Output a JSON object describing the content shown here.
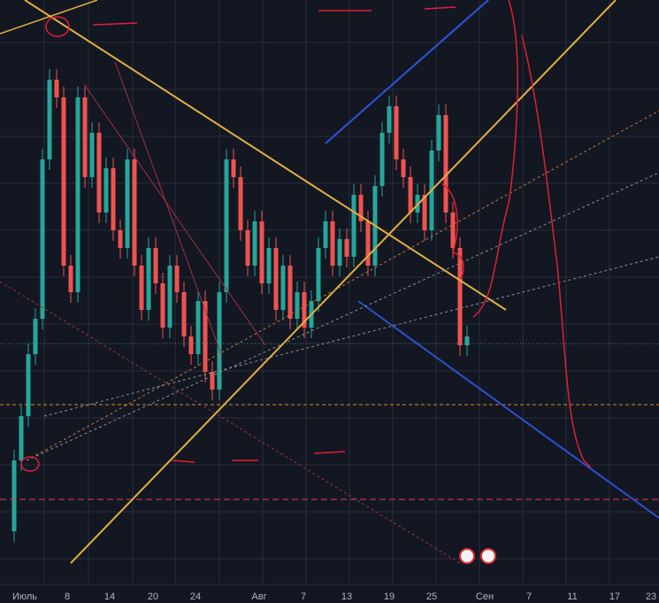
{
  "chart_data": {
    "type": "candlestick",
    "categories": [
      "Июль",
      "8",
      "14",
      "20",
      "24",
      "Авг",
      "7",
      "13",
      "19",
      "25",
      "Сен",
      "7",
      "11",
      "17",
      "23"
    ],
    "open": [
      60,
      140,
      190,
      260,
      300,
      480,
      570,
      550,
      360,
      330,
      550,
      460,
      510,
      420,
      470,
      400,
      380,
      480,
      360,
      310,
      380,
      340,
      290,
      360,
      330,
      280,
      260,
      320,
      240,
      220,
      330,
      480,
      460,
      400,
      360,
      410,
      340,
      380,
      310,
      360,
      300,
      330,
      290,
      320,
      380,
      410,
      360,
      390,
      370,
      440,
      410,
      360,
      450,
      510,
      540,
      480,
      460,
      420,
      440,
      400,
      490,
      530,
      420,
      380,
      270
    ],
    "high": [
      152,
      202,
      272,
      312,
      492,
      582,
      582,
      562,
      372,
      562,
      562,
      522,
      522,
      482,
      482,
      412,
      492,
      492,
      372,
      392,
      392,
      352,
      372,
      372,
      342,
      292,
      332,
      332,
      252,
      342,
      492,
      492,
      472,
      412,
      422,
      422,
      392,
      392,
      372,
      372,
      342,
      342,
      332,
      392,
      422,
      422,
      402,
      402,
      452,
      452,
      422,
      462,
      522,
      552,
      552,
      492,
      472,
      452,
      452,
      502,
      542,
      542,
      432,
      392,
      292
    ],
    "low": [
      48,
      128,
      178,
      248,
      288,
      468,
      538,
      348,
      318,
      318,
      448,
      448,
      408,
      408,
      388,
      368,
      368,
      348,
      298,
      298,
      328,
      278,
      278,
      318,
      268,
      248,
      248,
      228,
      208,
      208,
      318,
      448,
      388,
      348,
      348,
      328,
      328,
      298,
      298,
      288,
      288,
      278,
      278,
      308,
      368,
      348,
      348,
      358,
      358,
      398,
      348,
      348,
      438,
      498,
      468,
      448,
      408,
      408,
      388,
      388,
      478,
      408,
      368,
      258,
      258
    ],
    "close": [
      140,
      190,
      260,
      300,
      480,
      570,
      550,
      360,
      330,
      550,
      460,
      510,
      420,
      470,
      400,
      380,
      480,
      360,
      310,
      380,
      340,
      290,
      360,
      330,
      280,
      260,
      320,
      240,
      220,
      330,
      480,
      460,
      400,
      360,
      410,
      340,
      380,
      310,
      360,
      300,
      330,
      290,
      320,
      380,
      410,
      360,
      390,
      370,
      440,
      410,
      360,
      450,
      510,
      540,
      480,
      460,
      420,
      440,
      400,
      490,
      530,
      420,
      380,
      270,
      280
    ],
    "up_color": "#26a69a",
    "down_color": "#ef5350",
    "ylim": [
      0,
      660
    ]
  }
}
